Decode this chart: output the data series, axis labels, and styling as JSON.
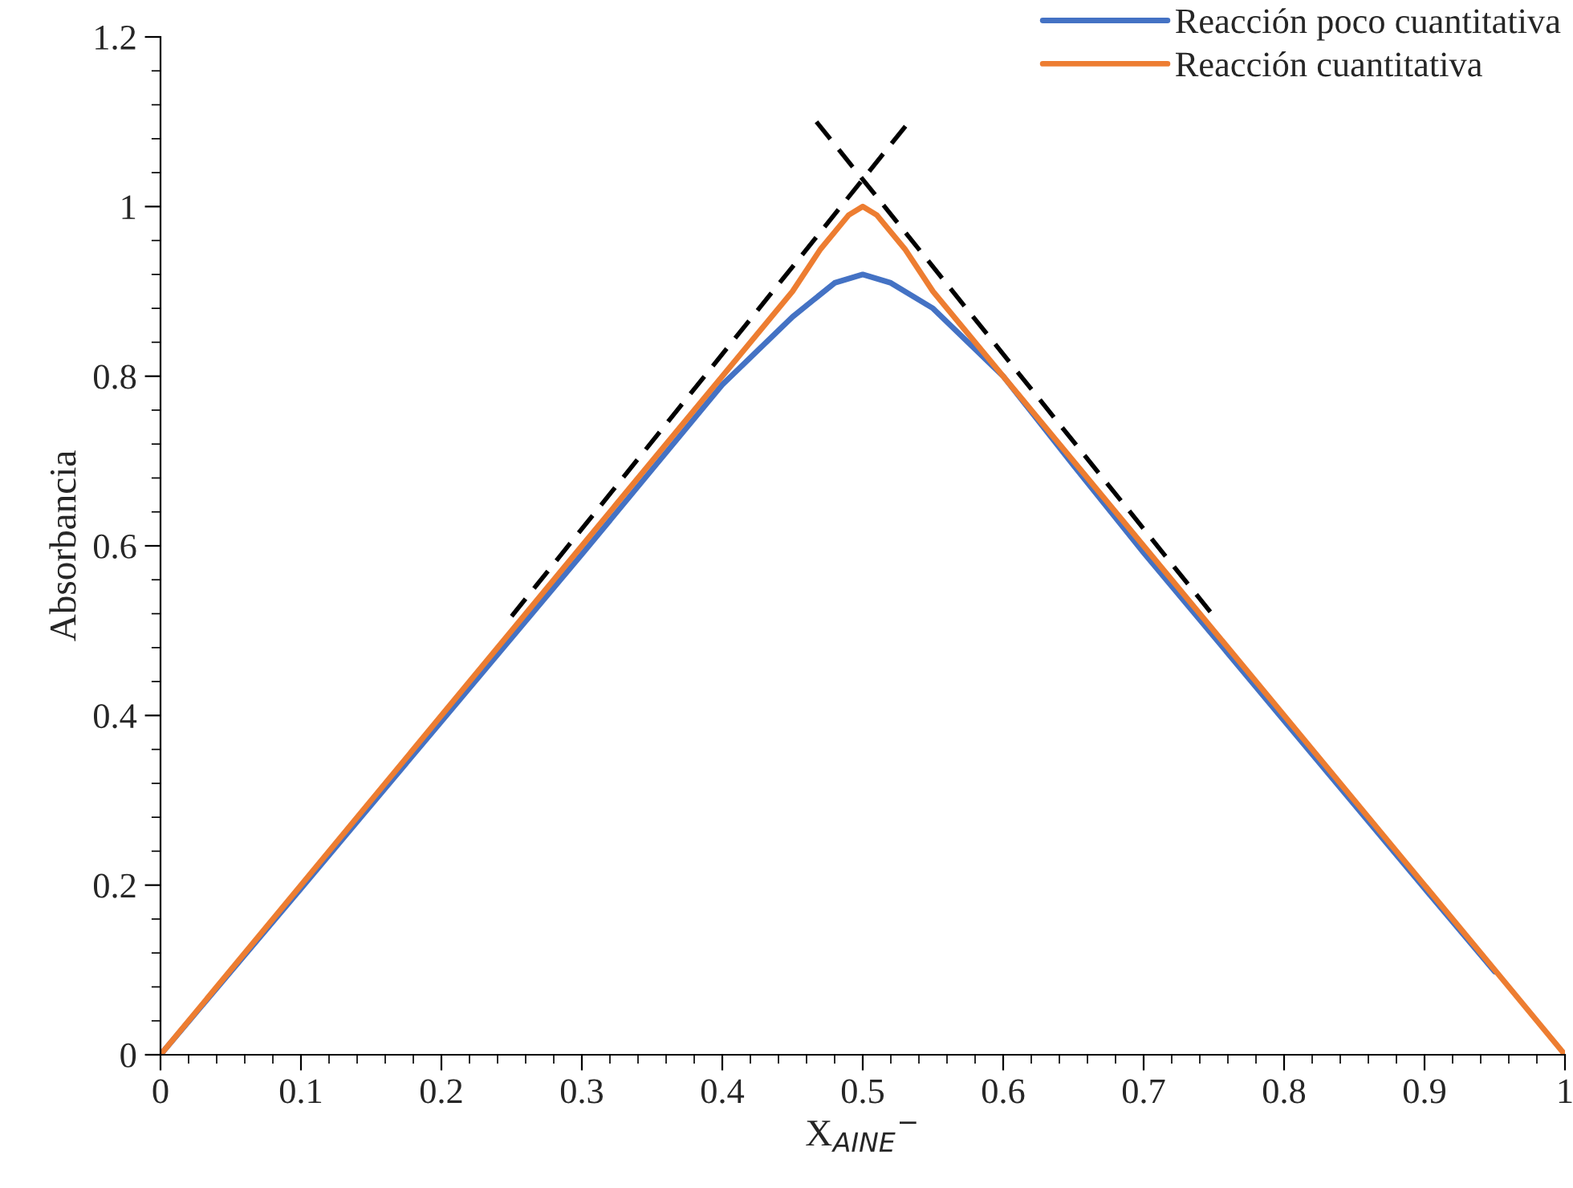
{
  "chart_data": {
    "type": "line",
    "xlabel": "X$_{AINE}$$^{−}$",
    "ylabel": "Absorbancia",
    "xlim": [
      0,
      1
    ],
    "ylim": [
      0,
      1.2
    ],
    "xticks": [
      0,
      0.1,
      0.2,
      0.3,
      0.4,
      0.5,
      0.6,
      0.7,
      0.8,
      0.9,
      1
    ],
    "yticks": [
      0,
      0.2,
      0.4,
      0.6,
      0.8,
      1,
      1.2
    ],
    "grid": false,
    "legend": "top right",
    "line_style": "solid",
    "marker": "none",
    "series": [
      {
        "name": "Reacción poco cuantitativa",
        "color": "#4472c4",
        "x": [
          0,
          0.1,
          0.2,
          0.3,
          0.35,
          0.4,
          0.45,
          0.48,
          0.5,
          0.52,
          0.55,
          0.6,
          0.65,
          0.7,
          0.8,
          0.9,
          0.95
        ],
        "values": [
          0,
          0.196,
          0.393,
          0.59,
          0.69,
          0.79,
          0.87,
          0.91,
          0.92,
          0.91,
          0.88,
          0.8,
          0.695,
          0.592,
          0.394,
          0.196,
          0.098
        ]
      },
      {
        "name": "Reacción cuantitativa",
        "color": "#ed7d31",
        "x": [
          0,
          0.1,
          0.2,
          0.3,
          0.4,
          0.45,
          0.47,
          0.49,
          0.5,
          0.51,
          0.53,
          0.55,
          0.6,
          0.7,
          0.8,
          0.9,
          1
        ],
        "values": [
          0,
          0.2,
          0.4,
          0.6,
          0.8,
          0.9,
          0.95,
          0.99,
          1.0,
          0.99,
          0.95,
          0.9,
          0.8,
          0.6,
          0.4,
          0.2,
          0
        ]
      },
      {
        "color": "#000000",
        "line_style": "dashed",
        "x": [
          0.25,
          0.533
        ],
        "values": [
          0.517,
          1.1
        ]
      },
      {
        "color": "#000000",
        "line_style": "dashed",
        "x": [
          0.467,
          0.75
        ],
        "values": [
          1.1,
          0.517
        ]
      }
    ]
  }
}
